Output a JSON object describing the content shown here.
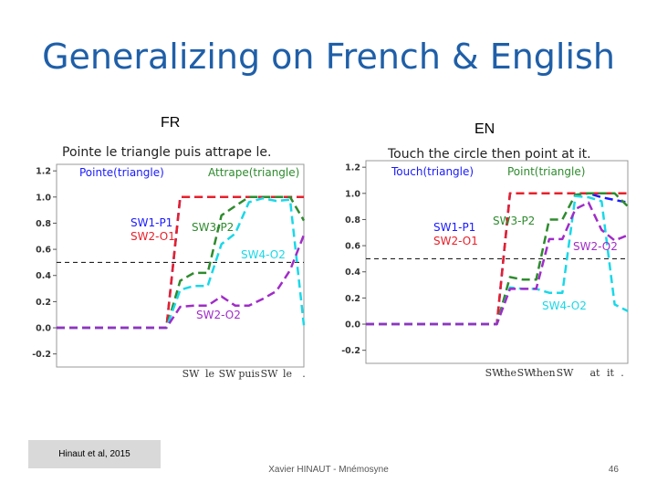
{
  "slide": {
    "title": "Generalizing on French & English",
    "citation": "Hinaut et al, 2015",
    "footer": "Xavier HINAUT - Mnémosyne",
    "page_number": "46"
  },
  "chart_data": [
    {
      "panel_label": "FR",
      "type": "line",
      "title": "Pointe le triangle puis attrape le.",
      "x_tick_labels": [
        "SW",
        "le",
        "SW",
        "puis",
        "SW",
        "le",
        "."
      ],
      "x_steps": 18,
      "ylim": [
        -0.3,
        1.25
      ],
      "y_ticks": [
        1.2,
        1.0,
        0.8,
        0.6,
        0.4,
        0.2,
        0.0,
        -0.2
      ],
      "threshold": 0.5,
      "legend": [
        {
          "text": "Pointe(triangle)",
          "color": "#1a1aff"
        },
        {
          "text": "Attrape(triangle)",
          "color": "#2e8b2e"
        }
      ],
      "series": [
        {
          "name": "SW1-P1",
          "color": "#1a1aff",
          "values": [
            0,
            0,
            0,
            0,
            0,
            0,
            0,
            0,
            0,
            1,
            1,
            1,
            1,
            1,
            1,
            1,
            1,
            1,
            1
          ]
        },
        {
          "name": "SW2-O1",
          "color": "#e8202a",
          "values": [
            0,
            0,
            0,
            0,
            0,
            0,
            0,
            0,
            0,
            1,
            1,
            1,
            1,
            1,
            1,
            1,
            1,
            1,
            1
          ]
        },
        {
          "name": "SW3-P2",
          "color": "#2e8b2e",
          "values": [
            0,
            0,
            0,
            0,
            0,
            0,
            0,
            0,
            0,
            0.36,
            0.42,
            0.42,
            0.86,
            0.93,
            1,
            1,
            1,
            1,
            0.82
          ]
        },
        {
          "name": "SW4-O2",
          "color": "#19d8e8",
          "values": [
            0,
            0,
            0,
            0,
            0,
            0,
            0,
            0,
            0,
            0.29,
            0.32,
            0.32,
            0.64,
            0.72,
            0.96,
            0.99,
            0.97,
            0.98,
            0.02
          ]
        },
        {
          "name": "SW2-O2",
          "color": "#a02cc8",
          "values": [
            0,
            0,
            0,
            0,
            0,
            0,
            0,
            0,
            0,
            0.16,
            0.17,
            0.17,
            0.24,
            0.17,
            0.17,
            0.22,
            0.28,
            0.44,
            0.71
          ]
        }
      ],
      "annotations": [
        {
          "text": "SW1-P1",
          "color": "#1a1aff"
        },
        {
          "text": "SW2-O1",
          "color": "#e8202a"
        },
        {
          "text": "SW3-P2",
          "color": "#2e8b2e"
        },
        {
          "text": "SW4-O2",
          "color": "#19d8e8"
        },
        {
          "text": "SW2-O2",
          "color": "#a02cc8"
        }
      ]
    },
    {
      "panel_label": "EN",
      "type": "line",
      "title": "Touch the circle then point at it.",
      "x_tick_labels": [
        "SW",
        "the",
        "SW",
        "then",
        "SW",
        "at",
        "it",
        "."
      ],
      "x_steps": 20,
      "ylim": [
        -0.3,
        1.25
      ],
      "y_ticks": [
        1.2,
        1.0,
        0.8,
        0.6,
        0.4,
        0.2,
        0.0,
        -0.2
      ],
      "threshold": 0.5,
      "legend": [
        {
          "text": "Touch(triangle)",
          "color": "#1a1aff"
        },
        {
          "text": "Point(triangle)",
          "color": "#2e8b2e"
        }
      ],
      "series": [
        {
          "name": "SW1-P1",
          "color": "#1a1aff",
          "values": [
            0,
            0,
            0,
            0,
            0,
            0,
            0,
            0,
            0,
            0,
            0,
            1,
            1,
            1,
            1,
            1,
            1,
            1,
            0.97,
            0.95,
            0.93
          ]
        },
        {
          "name": "SW2-O1",
          "color": "#e8202a",
          "values": [
            0,
            0,
            0,
            0,
            0,
            0,
            0,
            0,
            0,
            0,
            0,
            1,
            1,
            1,
            1,
            1,
            1,
            1,
            1,
            1,
            1
          ]
        },
        {
          "name": "SW3-P2",
          "color": "#2e8b2e",
          "values": [
            0,
            0,
            0,
            0,
            0,
            0,
            0,
            0,
            0,
            0,
            0,
            0.36,
            0.34,
            0.34,
            0.8,
            0.8,
            0.99,
            1,
            1,
            1,
            0.9
          ]
        },
        {
          "name": "SW4-O2",
          "color": "#19d8e8",
          "values": [
            0,
            0,
            0,
            0,
            0,
            0,
            0,
            0,
            0,
            0,
            0,
            0.28,
            0.27,
            0.27,
            0.24,
            0.24,
            0.98,
            0.97,
            0.94,
            0.15,
            0.1
          ]
        },
        {
          "name": "SW2-O2",
          "color": "#a02cc8",
          "values": [
            0,
            0,
            0,
            0,
            0,
            0,
            0,
            0,
            0,
            0,
            0,
            0.27,
            0.27,
            0.27,
            0.65,
            0.65,
            0.88,
            0.93,
            0.72,
            0.64,
            0.68
          ]
        }
      ],
      "annotations": [
        {
          "text": "SW1-P1",
          "color": "#1a1aff"
        },
        {
          "text": "SW2-O1",
          "color": "#e8202a"
        },
        {
          "text": "SW3-P2",
          "color": "#2e8b2e"
        },
        {
          "text": "SW2-O2",
          "color": "#a02cc8"
        },
        {
          "text": "SW4-O2",
          "color": "#19d8e8"
        }
      ]
    }
  ]
}
